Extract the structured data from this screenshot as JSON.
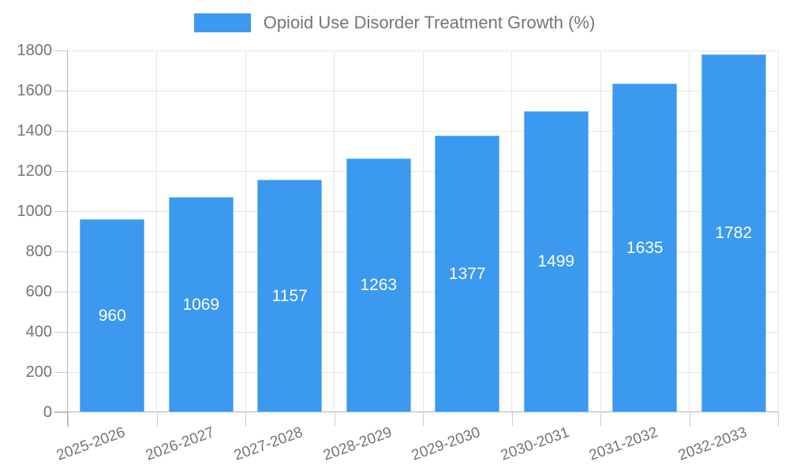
{
  "legend": {
    "label": "Opioid Use Disorder Treatment Growth (%)"
  },
  "colors": {
    "bar": "#3B99F0",
    "grid": "#e6e6e6",
    "axis": "#b3b3b3",
    "axis_text": "#757575",
    "value_label": "#ffffff"
  },
  "chart_data": {
    "type": "bar",
    "title": "Opioid Use Disorder Treatment Growth (%)",
    "categories": [
      "2025-2026",
      "2026-2027",
      "2027-2028",
      "2028-2029",
      "2029-2030",
      "2030-2031",
      "2031-2032",
      "2032-2033"
    ],
    "values": [
      960,
      1069,
      1157,
      1263,
      1377,
      1499,
      1635,
      1782
    ],
    "value_labels": [
      "960",
      "1069",
      "1157",
      "1263",
      "1377",
      "1499",
      "1635",
      "1782"
    ],
    "xlabel": "",
    "ylabel": "",
    "ylim": [
      0,
      1800
    ],
    "yticks": [
      0,
      200,
      400,
      600,
      800,
      1000,
      1200,
      1400,
      1600,
      1800
    ],
    "ytick_labels": [
      "0",
      "200",
      "400",
      "600",
      "800",
      "1000",
      "1200",
      "1400",
      "1600",
      "1800"
    ],
    "grid": true,
    "legend_position": "top",
    "legend_entries": [
      "Opioid Use Disorder Treatment Growth (%)"
    ]
  }
}
